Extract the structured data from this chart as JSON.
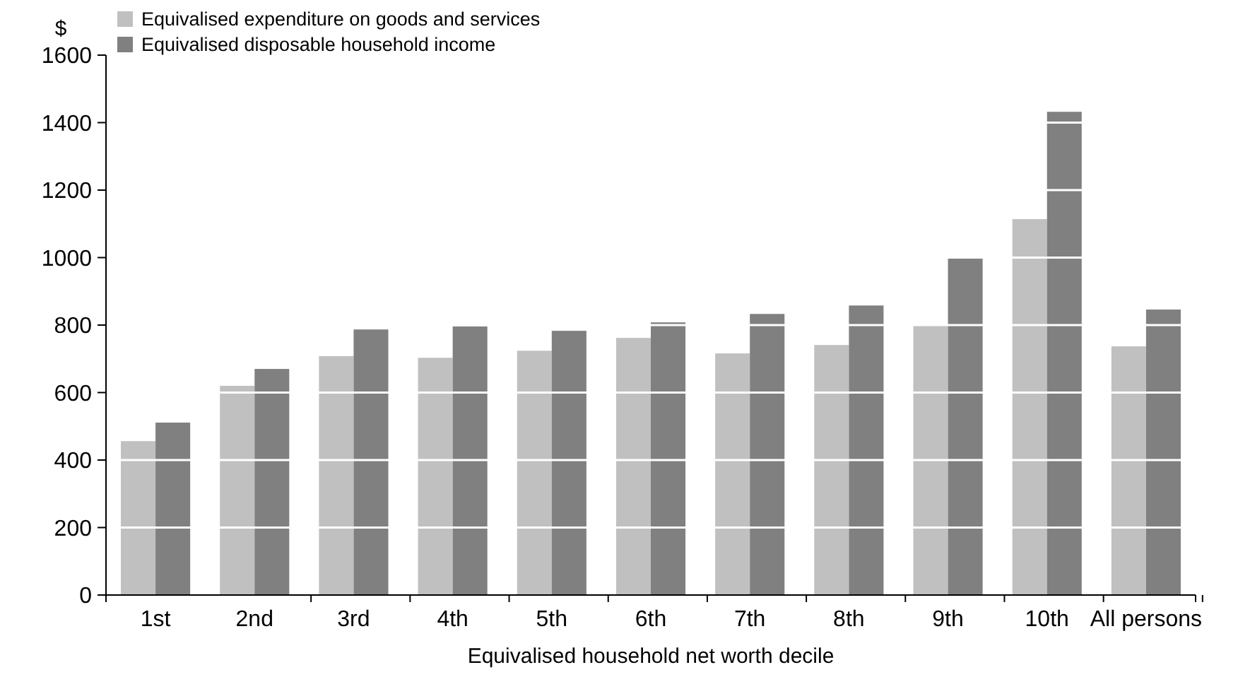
{
  "chart_data": {
    "type": "bar",
    "xlabel": "Equivalised household net worth decile",
    "ylabel": "$",
    "categories": [
      "1st",
      "2nd",
      "3rd",
      "4th",
      "5th",
      "6th",
      "7th",
      "8th",
      "9th",
      "10th",
      "All persons"
    ],
    "series": [
      {
        "name": "Equivalised expenditure on goods and services",
        "color": "#c0c0c0",
        "values": [
          456,
          620,
          708,
          703,
          724,
          762,
          716,
          741,
          800,
          1114,
          737
        ]
      },
      {
        "name": "Equivalised disposable household income",
        "color": "#808080",
        "values": [
          511,
          670,
          787,
          796,
          783,
          808,
          833,
          858,
          997,
          1432,
          846
        ]
      }
    ],
    "ylim": [
      0,
      1600
    ],
    "yticks": [
      0,
      200,
      400,
      600,
      800,
      1000,
      1200,
      1400,
      1600
    ],
    "grid": "y",
    "legend": "top left"
  }
}
